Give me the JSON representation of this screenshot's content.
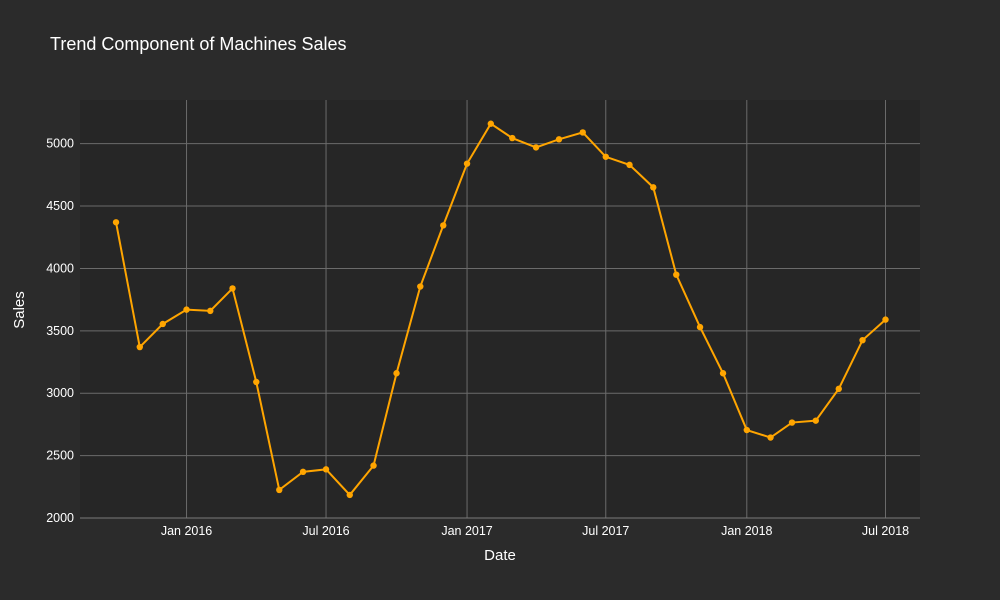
{
  "chart_data": {
    "type": "line",
    "title": "Trend Component of Machines Sales",
    "xlabel": "Date",
    "ylabel": "Sales",
    "ylim": [
      2000,
      5350
    ],
    "xlim": [
      "2015-08-15",
      "2018-08-15"
    ],
    "grid": true,
    "y_ticks": [
      2000,
      2500,
      3000,
      3500,
      4000,
      4500,
      5000
    ],
    "x_ticks": [
      {
        "date": "2016-01-01",
        "label": "Jan 2016"
      },
      {
        "date": "2016-07-01",
        "label": "Jul 2016"
      },
      {
        "date": "2017-01-01",
        "label": "Jan 2017"
      },
      {
        "date": "2017-07-01",
        "label": "Jul 2017"
      },
      {
        "date": "2018-01-01",
        "label": "Jan 2018"
      },
      {
        "date": "2018-07-01",
        "label": "Jul 2018"
      }
    ],
    "series": [
      {
        "color": "#FFA500",
        "points": [
          {
            "x": "2015-10-01",
            "y": 4370
          },
          {
            "x": "2015-11-01",
            "y": 3370
          },
          {
            "x": "2015-12-01",
            "y": 3555
          },
          {
            "x": "2016-01-01",
            "y": 3670
          },
          {
            "x": "2016-02-01",
            "y": 3660
          },
          {
            "x": "2016-03-01",
            "y": 3840
          },
          {
            "x": "2016-04-01",
            "y": 3090
          },
          {
            "x": "2016-05-01",
            "y": 2225
          },
          {
            "x": "2016-06-01",
            "y": 2370
          },
          {
            "x": "2016-07-01",
            "y": 2390
          },
          {
            "x": "2016-08-01",
            "y": 2185
          },
          {
            "x": "2016-09-01",
            "y": 2420
          },
          {
            "x": "2016-10-01",
            "y": 3160
          },
          {
            "x": "2016-11-01",
            "y": 3855
          },
          {
            "x": "2016-12-01",
            "y": 4345
          },
          {
            "x": "2017-01-01",
            "y": 4840
          },
          {
            "x": "2017-02-01",
            "y": 5160
          },
          {
            "x": "2017-03-01",
            "y": 5045
          },
          {
            "x": "2017-04-01",
            "y": 4970
          },
          {
            "x": "2017-05-01",
            "y": 5035
          },
          {
            "x": "2017-06-01",
            "y": 5090
          },
          {
            "x": "2017-07-01",
            "y": 4895
          },
          {
            "x": "2017-08-01",
            "y": 4830
          },
          {
            "x": "2017-09-01",
            "y": 4650
          },
          {
            "x": "2017-10-01",
            "y": 3950
          },
          {
            "x": "2017-11-01",
            "y": 3530
          },
          {
            "x": "2017-12-01",
            "y": 3160
          },
          {
            "x": "2018-01-01",
            "y": 2705
          },
          {
            "x": "2018-02-01",
            "y": 2645
          },
          {
            "x": "2018-03-01",
            "y": 2765
          },
          {
            "x": "2018-04-01",
            "y": 2780
          },
          {
            "x": "2018-05-01",
            "y": 3035
          },
          {
            "x": "2018-06-01",
            "y": 3425
          },
          {
            "x": "2018-07-01",
            "y": 3590
          }
        ]
      }
    ]
  },
  "colors": {
    "background": "#2b2b2b",
    "plot_background": "#262626",
    "grid": "#6b6b6b",
    "text": "#ffffff",
    "series": "#FFA500"
  }
}
